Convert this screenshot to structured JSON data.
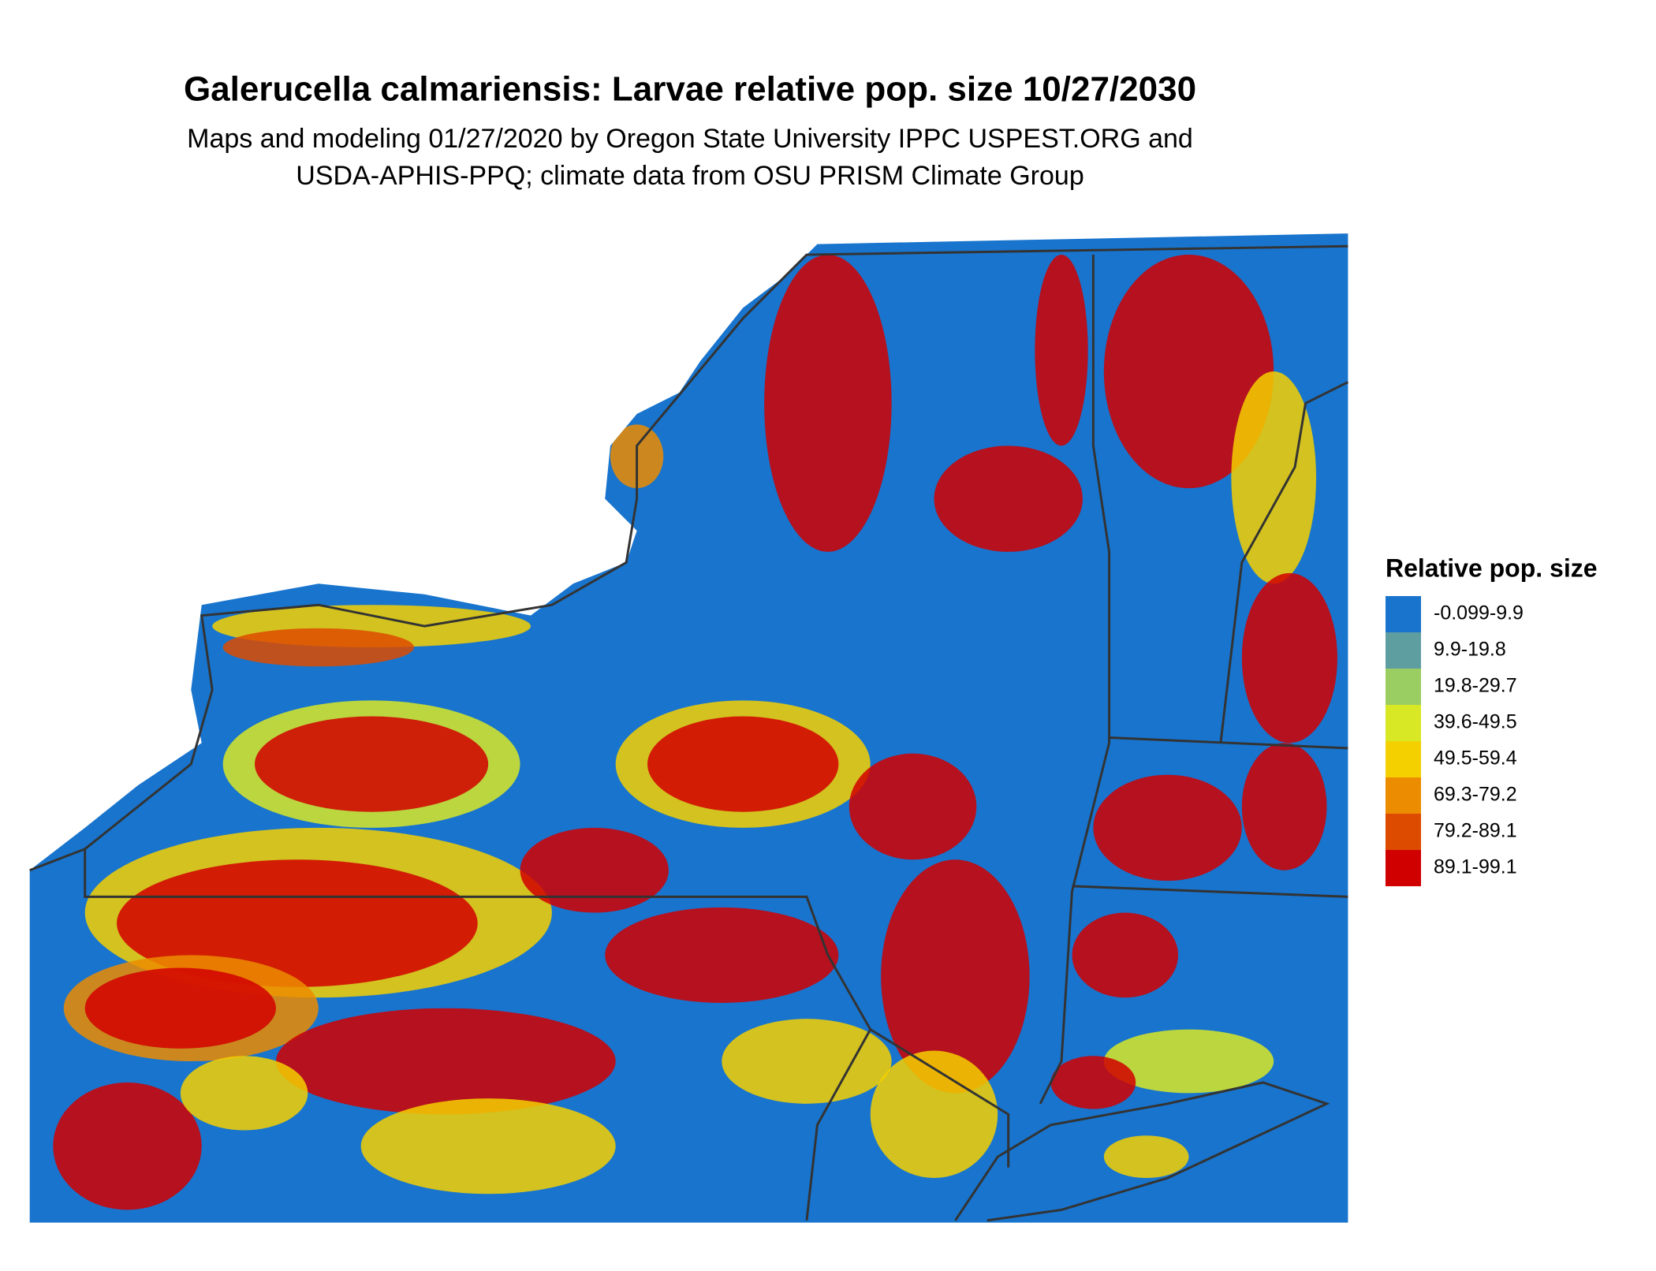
{
  "chart_data": {
    "type": "map",
    "title": "Galerucella calmariensis: Larvae relative pop. size 10/27/2030",
    "subtitle": [
      "Maps and modeling 01/27/2020 by Oregon State University IPPC USPEST.ORG and",
      "USDA-APHIS-PPQ; climate data from OSU PRISM Climate Group"
    ],
    "legend": {
      "title": "Relative pop. size",
      "items": [
        {
          "label": "-0.099-9.9",
          "color": "#1874cd"
        },
        {
          "label": "9.9-19.8",
          "color": "#5f9ea0"
        },
        {
          "label": "19.8-29.7",
          "color": "#9acd62"
        },
        {
          "label": "39.6-49.5",
          "color": "#d8e824"
        },
        {
          "label": "49.5-59.4",
          "color": "#f5d000"
        },
        {
          "label": "69.3-79.2",
          "color": "#ec8c00"
        },
        {
          "label": "79.2-89.1",
          "color": "#dd4b00"
        },
        {
          "label": "89.1-99.1",
          "color": "#d10000"
        }
      ]
    }
  }
}
